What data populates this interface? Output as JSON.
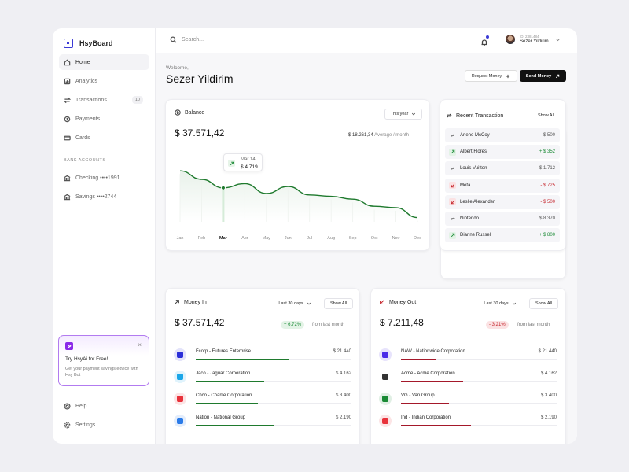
{
  "app": {
    "name": "HsyBoard"
  },
  "sidebar": {
    "nav": [
      {
        "label": "Home",
        "icon": "home-icon",
        "active": true
      },
      {
        "label": "Analytics",
        "icon": "analytics-icon"
      },
      {
        "label": "Transactions",
        "icon": "transactions-icon",
        "badge": "10"
      },
      {
        "label": "Payments",
        "icon": "payments-icon"
      },
      {
        "label": "Cards",
        "icon": "cards-icon"
      }
    ],
    "bank_section": "BANK ACCOUNTS",
    "banks": [
      {
        "label": "Checking ••••1991",
        "icon": "bank-icon"
      },
      {
        "label": "Savings ••••2744",
        "icon": "bank-icon"
      }
    ],
    "promo": {
      "title": "Try HsyAi for Free!",
      "text": "Get your payment savings edvice with Hsy Bot",
      "close": "×"
    },
    "bottom": [
      {
        "label": "Help",
        "icon": "help-icon"
      },
      {
        "label": "Settings",
        "icon": "settings-icon"
      }
    ]
  },
  "topbar": {
    "search_placeholder": "Search...",
    "user_id": "ID: 2381484",
    "user_name": "Sezer Yildirim"
  },
  "header": {
    "welcome": "Welcome,",
    "name": "Sezer Yildirim",
    "request_label": "Request Money",
    "send_label": "Send Money"
  },
  "balance": {
    "title": "Balance",
    "period": "This year",
    "amount": "$ 37.571,42",
    "average_value": "$ 18.261,34",
    "average_label": "Average / month",
    "tooltip_date": "Mar 14",
    "tooltip_value": "$ 4.719"
  },
  "chart_data": {
    "type": "line",
    "categories": [
      "Jan",
      "Feb",
      "Mar",
      "Apr",
      "May",
      "Jun",
      "Jul",
      "Aug",
      "Sep",
      "Oct",
      "Nov",
      "Dec"
    ],
    "highlighted": "Mar",
    "series": [
      {
        "values": [
          72,
          60,
          48,
          54,
          40,
          50,
          38,
          36,
          32,
          22,
          20,
          6
        ]
      }
    ],
    "ylim": [
      0,
      100
    ],
    "grid": false,
    "color": "#1f7a2e"
  },
  "recent": {
    "title": "Recent Transaction",
    "show_all": "Show All",
    "items": [
      {
        "name": "Arlene McCoy",
        "amount": "$ 500",
        "type": "neutral"
      },
      {
        "name": "Albert Flores",
        "amount": "+ $ 352",
        "type": "in"
      },
      {
        "name": "Louis Vuitton",
        "amount": "$ 1.712",
        "type": "neutral"
      },
      {
        "name": "Meta",
        "amount": "- $ 725",
        "type": "out"
      },
      {
        "name": "Leslie Alexander",
        "amount": "- $ 500",
        "type": "out"
      },
      {
        "name": "Nintendo",
        "amount": "$ 8.370",
        "type": "neutral"
      },
      {
        "name": "Dianne Russell",
        "amount": "+ $ 800",
        "type": "in"
      }
    ]
  },
  "money_in": {
    "title": "Money In",
    "period": "Last 30 days",
    "show_all": "Show All",
    "amount": "$ 37.571,42",
    "change": "+ 6,72%",
    "from": "from last month",
    "items": [
      {
        "name": "Fcorp - Futures Enterprise",
        "amount": "$ 21.440",
        "progress": 0.6,
        "logo_color": "#2b2fd8"
      },
      {
        "name": "Jaco - Jaguar Corporation",
        "amount": "$ 4.162",
        "progress": 0.44,
        "logo_color": "#1aa6e8"
      },
      {
        "name": "Chco - Charlie Corporation",
        "amount": "$ 3.400",
        "progress": 0.4,
        "logo_color": "#e8323b"
      },
      {
        "name": "Nation - National Group",
        "amount": "$ 2.190",
        "progress": 0.5,
        "logo_color": "#2b7be8"
      }
    ]
  },
  "money_out": {
    "title": "Money Out",
    "period": "Last 30 days",
    "show_all": "Show All",
    "amount": "$ 7.211,48",
    "change": "- 3,21%",
    "from": "from last month",
    "items": [
      {
        "name": "NAW - Nationwide Corporation",
        "amount": "$ 21.440",
        "progress": 0.22,
        "logo_color": "#4a2be8"
      },
      {
        "name": "Acme - Acme Corporation",
        "amount": "$ 4.162",
        "progress": 0.4,
        "logo_color": "#333"
      },
      {
        "name": "VG - Van Group",
        "amount": "$ 3.400",
        "progress": 0.31,
        "logo_color": "#1a8a35"
      },
      {
        "name": "Ind - Indian Corporation",
        "amount": "$ 2.190",
        "progress": 0.45,
        "logo_color": "#e8323b"
      }
    ]
  }
}
